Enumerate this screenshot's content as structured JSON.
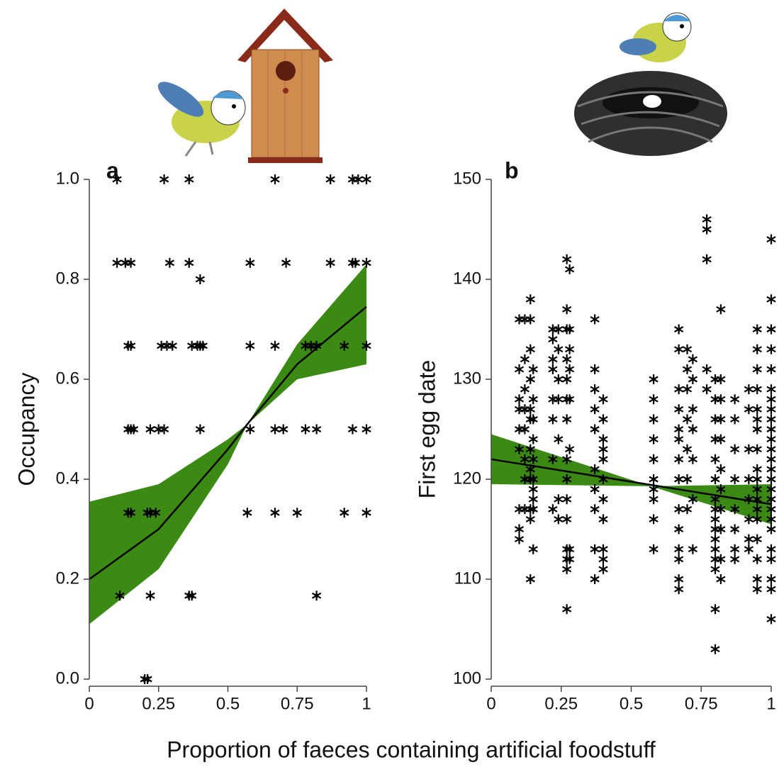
{
  "shared_xlabel": "Proportion of faeces containing artificial foodstuff",
  "chart_data": [
    {
      "type": "scatter",
      "panel": "a",
      "ylabel": "Occupancy",
      "xlim": [
        0,
        1
      ],
      "xticks": [
        0,
        0.25,
        0.5,
        0.75,
        1
      ],
      "ylim": [
        0,
        1
      ],
      "yticks": [
        {
          "value": 0,
          "label": "0.0"
        },
        0.2,
        0.4,
        0.6,
        0.8,
        {
          "value": 1,
          "label": "1.0"
        }
      ],
      "color": "#000000",
      "band_color": "#3a8a13",
      "x": [
        0.1,
        0.27,
        0.36,
        0.67,
        0.87,
        0.95,
        0.97,
        1.0,
        0.1,
        0.13,
        0.15,
        0.29,
        0.36,
        0.58,
        0.71,
        0.87,
        0.95,
        0.96,
        1.0,
        0.4,
        0.14,
        0.15,
        0.26,
        0.28,
        0.3,
        0.37,
        0.39,
        0.4,
        0.41,
        0.58,
        0.67,
        0.78,
        0.8,
        0.82,
        0.92,
        1.0,
        0.14,
        0.15,
        0.16,
        0.22,
        0.25,
        0.27,
        0.4,
        0.58,
        0.67,
        0.7,
        0.78,
        0.82,
        0.95,
        1.0,
        0.14,
        0.15,
        0.21,
        0.22,
        0.24,
        0.57,
        0.67,
        0.75,
        0.92,
        1.0,
        0.11,
        0.22,
        0.36,
        0.37,
        0.82,
        0.2,
        0.21
      ],
      "values": [
        1,
        1,
        1,
        1,
        1,
        1,
        1,
        1,
        0.833,
        0.833,
        0.833,
        0.833,
        0.833,
        0.833,
        0.833,
        0.833,
        0.833,
        0.833,
        0.833,
        0.8,
        0.667,
        0.667,
        0.667,
        0.667,
        0.667,
        0.667,
        0.667,
        0.667,
        0.667,
        0.667,
        0.667,
        0.667,
        0.667,
        0.667,
        0.667,
        0.667,
        0.5,
        0.5,
        0.5,
        0.5,
        0.5,
        0.5,
        0.5,
        0.5,
        0.5,
        0.5,
        0.5,
        0.5,
        0.5,
        0.5,
        0.333,
        0.333,
        0.333,
        0.333,
        0.333,
        0.333,
        0.333,
        0.333,
        0.333,
        0.333,
        0.167,
        0.167,
        0.167,
        0.167,
        0.167,
        0,
        0
      ],
      "fit": {
        "x": [
          0,
          0.25,
          0.5,
          0.57,
          0.75,
          1
        ],
        "values": [
          0.2,
          0.3,
          0.46,
          0.51,
          0.63,
          0.745
        ]
      },
      "band": {
        "x": [
          0,
          0.25,
          0.5,
          0.57,
          0.75,
          1
        ],
        "lower": [
          0.11,
          0.22,
          0.43,
          0.51,
          0.6,
          0.63
        ],
        "upper": [
          0.355,
          0.39,
          0.48,
          0.51,
          0.67,
          0.83
        ]
      }
    },
    {
      "type": "scatter",
      "panel": "b",
      "ylabel": "First egg date",
      "xlim": [
        0,
        1
      ],
      "xticks": [
        0,
        0.25,
        0.5,
        0.75,
        1
      ],
      "ylim": [
        100,
        150
      ],
      "yticks": [
        100,
        110,
        120,
        130,
        140,
        150
      ],
      "color": "#000000",
      "band_color": "#3a8a13",
      "x": [
        0.1,
        0.1,
        0.1,
        0.1,
        0.1,
        0.1,
        0.1,
        0.1,
        0.1,
        0.12,
        0.12,
        0.12,
        0.12,
        0.12,
        0.12,
        0.12,
        0.12,
        0.14,
        0.14,
        0.14,
        0.14,
        0.14,
        0.14,
        0.14,
        0.14,
        0.14,
        0.14,
        0.14,
        0.14,
        0.15,
        0.15,
        0.15,
        0.15,
        0.15,
        0.15,
        0.15,
        0.15,
        0.15,
        0.15,
        0.22,
        0.22,
        0.22,
        0.22,
        0.22,
        0.22,
        0.22,
        0.22,
        0.24,
        0.24,
        0.24,
        0.24,
        0.24,
        0.24,
        0.24,
        0.27,
        0.27,
        0.27,
        0.27,
        0.27,
        0.27,
        0.27,
        0.27,
        0.27,
        0.27,
        0.27,
        0.27,
        0.27,
        0.27,
        0.27,
        0.28,
        0.28,
        0.28,
        0.28,
        0.28,
        0.28,
        0.28,
        0.28,
        0.37,
        0.37,
        0.37,
        0.37,
        0.37,
        0.37,
        0.37,
        0.37,
        0.37,
        0.37,
        0.4,
        0.4,
        0.4,
        0.4,
        0.4,
        0.4,
        0.4,
        0.4,
        0.4,
        0.4,
        0.4,
        0.58,
        0.58,
        0.58,
        0.58,
        0.58,
        0.58,
        0.58,
        0.58,
        0.58,
        0.58,
        0.67,
        0.67,
        0.67,
        0.67,
        0.67,
        0.67,
        0.67,
        0.67,
        0.67,
        0.67,
        0.67,
        0.67,
        0.67,
        0.67,
        0.7,
        0.7,
        0.7,
        0.7,
        0.7,
        0.7,
        0.7,
        0.72,
        0.72,
        0.72,
        0.72,
        0.72,
        0.72,
        0.72,
        0.77,
        0.77,
        0.77,
        0.77,
        0.77,
        0.8,
        0.8,
        0.8,
        0.8,
        0.8,
        0.8,
        0.8,
        0.8,
        0.8,
        0.8,
        0.8,
        0.8,
        0.8,
        0.8,
        0.8,
        0.8,
        0.82,
        0.82,
        0.82,
        0.82,
        0.82,
        0.82,
        0.82,
        0.82,
        0.82,
        0.82,
        0.82,
        0.87,
        0.87,
        0.87,
        0.87,
        0.87,
        0.87,
        0.87,
        0.87,
        0.92,
        0.92,
        0.92,
        0.92,
        0.92,
        0.92,
        0.92,
        0.92,
        0.95,
        0.95,
        0.95,
        0.95,
        0.95,
        0.95,
        0.95,
        0.95,
        0.95,
        0.95,
        0.95,
        0.95,
        0.95,
        0.95,
        0.95,
        0.95,
        0.95,
        0.95,
        1,
        1,
        1,
        1,
        1,
        1,
        1,
        1,
        1,
        1,
        1,
        1,
        1,
        1,
        1,
        1,
        1,
        1,
        1,
        1,
        1,
        1,
        1,
        1,
        1
      ],
      "values": [
        114,
        115,
        117,
        123,
        125,
        127,
        128,
        131,
        136,
        117,
        120,
        122,
        125,
        127,
        129,
        132,
        136,
        110,
        116,
        117,
        120,
        121,
        123,
        126,
        127,
        130,
        133,
        136,
        138,
        113,
        117,
        118,
        119,
        120,
        122,
        124,
        126,
        128,
        131,
        117,
        122,
        126,
        128,
        131,
        132,
        134,
        135,
        116,
        118,
        124,
        128,
        130,
        133,
        135,
        107,
        111,
        112,
        113,
        116,
        118,
        120,
        122,
        126,
        128,
        130,
        132,
        135,
        137,
        142,
        112,
        113,
        123,
        128,
        131,
        133,
        135,
        141,
        110,
        113,
        117,
        119,
        121,
        125,
        127,
        129,
        131,
        136,
        111,
        112,
        113,
        116,
        118,
        120,
        122,
        123,
        124,
        126,
        128,
        113,
        116,
        118,
        119,
        120,
        122,
        124,
        126,
        128,
        130,
        109,
        110,
        112,
        113,
        115,
        117,
        120,
        122,
        124,
        125,
        127,
        129,
        133,
        135,
        117,
        120,
        123,
        126,
        129,
        131,
        133,
        113,
        118,
        122,
        125,
        127,
        130,
        132,
        129,
        131,
        142,
        145,
        146,
        103,
        107,
        111,
        112,
        113,
        114,
        115,
        116,
        117,
        118,
        120,
        122,
        124,
        126,
        128,
        130,
        110,
        112,
        115,
        117,
        119,
        121,
        124,
        126,
        128,
        130,
        137,
        112,
        113,
        115,
        117,
        120,
        123,
        126,
        128,
        113,
        114,
        116,
        118,
        120,
        123,
        127,
        129,
        109,
        110,
        112,
        114,
        116,
        117,
        118,
        119,
        120,
        121,
        123,
        125,
        126,
        127,
        129,
        131,
        133,
        135,
        106,
        109,
        110,
        112,
        113,
        115,
        116,
        117,
        118,
        119,
        120,
        121,
        122,
        123,
        124,
        125,
        126,
        127,
        128,
        129,
        131,
        133,
        135,
        138,
        144
      ],
      "fit": {
        "x": [
          0,
          1
        ],
        "values": [
          122,
          117.5
        ]
      },
      "band": {
        "x": [
          0,
          0.57,
          1
        ],
        "lower": [
          119.5,
          119.3,
          115.5
        ],
        "upper": [
          124.5,
          119.3,
          119.5
        ]
      }
    }
  ]
}
